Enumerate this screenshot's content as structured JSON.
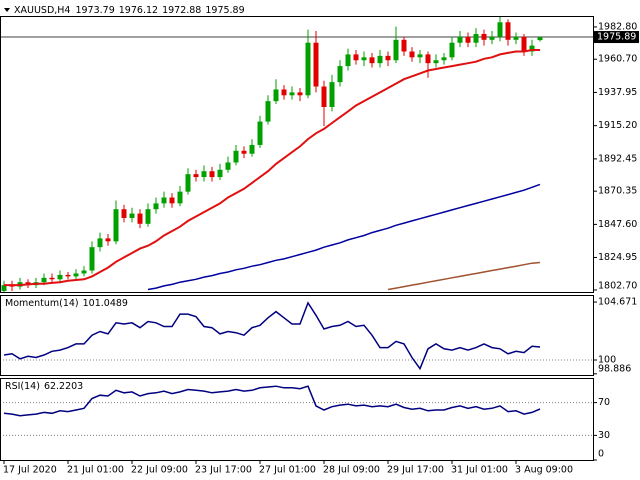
{
  "header": {
    "symbol": "XAUUSD,H4"
  },
  "chart_data": [
    {
      "type": "candlestick",
      "categories": [
        "17 Jul 2020",
        null,
        null,
        null,
        null,
        null,
        null,
        null,
        "21 Jul 01:00",
        null,
        null,
        null,
        null,
        null,
        null,
        null,
        "22 Jul 09:00",
        null,
        null,
        null,
        null,
        null,
        null,
        null,
        "23 Jul 17:00",
        null,
        null,
        null,
        null,
        null,
        null,
        null,
        "27 Jul 01:00",
        null,
        null,
        null,
        null,
        null,
        null,
        null,
        "28 Jul 09:00",
        null,
        null,
        null,
        null,
        null,
        null,
        null,
        "29 Jul 17:00",
        null,
        null,
        null,
        null,
        null,
        null,
        null,
        "31 Jul 01:00",
        null,
        null,
        null,
        null,
        null,
        null,
        null,
        "3 Aug 09:00",
        null,
        null,
        null
      ],
      "open": [
        1802,
        1806,
        1805,
        1808,
        1806,
        1808,
        1811,
        1810,
        1813,
        1812,
        1814,
        1816,
        1832,
        1838,
        1836,
        1858,
        1852,
        1855,
        1848,
        1858,
        1862,
        1866,
        1862,
        1870,
        1882,
        1880,
        1884,
        1880,
        1885,
        1890,
        1898,
        1896,
        1902,
        1918,
        1932,
        1940,
        1936,
        1938,
        1936,
        1972,
        1942,
        1928,
        1945,
        1956,
        1964,
        1960,
        1962,
        1958,
        1963,
        1960,
        1974,
        1966,
        1962,
        1964,
        1958,
        1960,
        1962,
        1972,
        1976,
        1972,
        1978,
        1974,
        1976,
        1986,
        1974,
        1976,
        1966,
        1973.79
      ],
      "high": [
        1809,
        1809,
        1811,
        1810,
        1811,
        1814,
        1814,
        1816,
        1815,
        1817,
        1819,
        1836,
        1842,
        1841,
        1864,
        1861,
        1859,
        1858,
        1862,
        1866,
        1870,
        1869,
        1874,
        1886,
        1885,
        1888,
        1887,
        1889,
        1894,
        1902,
        1901,
        1906,
        1922,
        1936,
        1947,
        1943,
        1942,
        1941,
        1981,
        1980,
        1946,
        1950,
        1960,
        1968,
        1967,
        1966,
        1965,
        1967,
        1966,
        1983,
        1976,
        1969,
        1967,
        1966,
        1964,
        1965,
        1976,
        1980,
        1979,
        1982,
        1981,
        1980,
        1990,
        1988,
        1979,
        1978,
        1974,
        1976.12
      ],
      "low": [
        1800,
        1802,
        1803,
        1804,
        1804,
        1806,
        1808,
        1808,
        1810,
        1810,
        1812,
        1814,
        1829,
        1833,
        1834,
        1849,
        1849,
        1845,
        1846,
        1855,
        1859,
        1859,
        1860,
        1868,
        1877,
        1877,
        1877,
        1878,
        1883,
        1888,
        1893,
        1894,
        1900,
        1916,
        1930,
        1933,
        1933,
        1932,
        1934,
        1938,
        1915,
        1925,
        1942,
        1953,
        1957,
        1956,
        1955,
        1955,
        1956,
        1958,
        1963,
        1959,
        1958,
        1948,
        1955,
        1957,
        1960,
        1969,
        1969,
        1969,
        1970,
        1971,
        1973,
        1970,
        1971,
        1963,
        1963,
        1972.88
      ],
      "close": [
        1806,
        1805,
        1808,
        1806,
        1808,
        1811,
        1810,
        1813,
        1812,
        1814,
        1816,
        1832,
        1838,
        1836,
        1858,
        1852,
        1855,
        1848,
        1858,
        1862,
        1866,
        1862,
        1870,
        1882,
        1880,
        1884,
        1880,
        1885,
        1890,
        1898,
        1896,
        1902,
        1918,
        1932,
        1940,
        1936,
        1938,
        1936,
        1972,
        1942,
        1928,
        1945,
        1956,
        1964,
        1960,
        1962,
        1958,
        1963,
        1960,
        1974,
        1966,
        1962,
        1964,
        1958,
        1960,
        1962,
        1972,
        1976,
        1972,
        1978,
        1974,
        1976,
        1986,
        1974,
        1976,
        1966,
        1970,
        1975.89
      ],
      "up_color": "#00a000",
      "down_color": "#e00000",
      "series": [
        {
          "color": "#e01010",
          "values": [
            1806,
            1806,
            1806,
            1806.5,
            1807,
            1807,
            1807.5,
            1808,
            1809,
            1809.5,
            1810,
            1812,
            1815,
            1818,
            1822,
            1825,
            1828,
            1831,
            1833,
            1836,
            1840,
            1843,
            1846,
            1850,
            1853,
            1856,
            1859,
            1862,
            1866,
            1869,
            1872,
            1876,
            1880,
            1884,
            1889,
            1893,
            1897,
            1901,
            1906,
            1910,
            1913,
            1917,
            1921,
            1925,
            1929,
            1932,
            1935,
            1938,
            1941,
            1944,
            1947,
            1949,
            1951,
            1953,
            1954,
            1955,
            1956,
            1957,
            1958,
            1959,
            1961,
            1962,
            1964,
            1965,
            1966,
            1966,
            1967,
            1967
          ]
        },
        {
          "color": "#0000a0",
          "values": [
            null,
            null,
            null,
            null,
            null,
            null,
            null,
            null,
            null,
            null,
            null,
            null,
            null,
            null,
            null,
            null,
            null,
            null,
            1803,
            1804,
            1805.5,
            1806.5,
            1808,
            1809,
            1810,
            1811.5,
            1812.5,
            1814,
            1815,
            1816.5,
            1817.5,
            1819,
            1820,
            1821.5,
            1823,
            1824,
            1825.5,
            1827,
            1828.5,
            1830,
            1832,
            1833.5,
            1835,
            1837,
            1838.5,
            1840,
            1842,
            1843.5,
            1845,
            1847,
            1848.5,
            1850,
            1851.5,
            1853,
            1854.5,
            1856,
            1857.5,
            1859,
            1860.5,
            1862,
            1863.5,
            1865,
            1866.5,
            1868,
            1869.5,
            1871,
            1873,
            1875
          ]
        },
        {
          "color": "#a0522d",
          "values": [
            null,
            null,
            null,
            null,
            null,
            null,
            null,
            null,
            null,
            null,
            null,
            null,
            null,
            null,
            null,
            null,
            null,
            null,
            null,
            null,
            null,
            null,
            null,
            null,
            null,
            null,
            null,
            null,
            null,
            null,
            null,
            null,
            null,
            null,
            null,
            null,
            null,
            null,
            null,
            null,
            null,
            null,
            null,
            null,
            null,
            null,
            null,
            null,
            1803,
            1804,
            1805,
            1806,
            1807,
            1808,
            1809,
            1810,
            1811,
            1812,
            1813,
            1814,
            1815,
            1816,
            1817,
            1818,
            1819,
            1820,
            1821,
            1821.5
          ]
        }
      ],
      "ylim": [
        1801.3,
        1990.3
      ],
      "yticks": [
        {
          "value": 1982.8,
          "label": "1982.80"
        },
        {
          "value": 1960.7,
          "label": "1960.70"
        },
        1937.95,
        {
          "value": 1915.2,
          "label": "1915.20"
        },
        1892.45,
        1870.35,
        {
          "value": 1847.6,
          "label": "1847.60"
        },
        1824.95,
        {
          "value": 1802.7,
          "label": "1802.70"
        }
      ]
    },
    {
      "type": "line",
      "title": "Momentum(14)",
      "series": [
        {
          "color": "#000080",
          "values": [
            100.4,
            100.5,
            100.1,
            100.3,
            100.2,
            100.4,
            100.7,
            100.8,
            101.0,
            101.3,
            101.3,
            102.0,
            102.3,
            102.1,
            103.0,
            102.9,
            103.0,
            102.6,
            103.1,
            103.0,
            102.7,
            102.7,
            103.7,
            103.7,
            103.5,
            102.7,
            102.6,
            102.1,
            102.3,
            102.2,
            102.0,
            102.6,
            102.8,
            103.4,
            103.9,
            103.4,
            102.9,
            102.9,
            104.6,
            103.6,
            102.5,
            102.7,
            102.8,
            103.1,
            102.7,
            102.8,
            102.0,
            101.0,
            101.0,
            101.5,
            101.3,
            100.2,
            99.3,
            100.9,
            101.3,
            100.9,
            100.8,
            101.0,
            100.8,
            101.0,
            101.3,
            101.0,
            100.9,
            100.5,
            100.7,
            100.6,
            101.1,
            101.0489
          ]
        }
      ],
      "ylim": [
        98.79,
        105.24
      ],
      "yticks": [
        104.671,
        100,
        98.886
      ],
      "levels": [
        100
      ]
    },
    {
      "type": "line",
      "title": "RSI(14)",
      "series": [
        {
          "color": "#000080",
          "values": [
            57,
            56,
            54,
            55,
            56,
            58,
            57,
            60,
            59,
            61,
            63,
            75,
            79,
            78,
            85,
            82,
            83,
            78,
            81,
            82,
            84,
            81,
            83,
            86,
            85,
            84,
            82,
            83,
            84,
            86,
            84,
            85,
            88,
            89,
            90,
            88,
            88,
            87,
            90,
            66,
            61,
            65,
            67,
            68,
            66,
            67,
            65,
            66,
            65,
            68,
            64,
            62,
            63,
            60,
            61,
            61,
            64,
            66,
            63,
            65,
            62,
            63,
            66,
            59,
            60,
            56,
            58,
            62.2203
          ]
        }
      ],
      "ylim": [
        0,
        100
      ],
      "yticks": [
        70,
        30,
        0
      ],
      "levels": [
        70,
        30
      ]
    }
  ]
}
